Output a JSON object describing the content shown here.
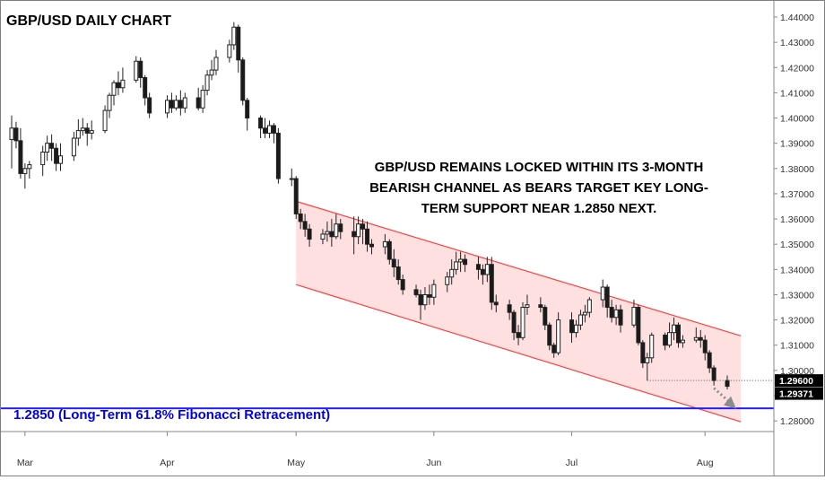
{
  "title": "GBP/USD DAILY CHART",
  "annotation_lines": [
    "GBP/USD REMAINS LOCKED WITHIN ITS 3-MONTH",
    "BEARISH CHANNEL AS BEARS TARGET KEY LONG-",
    "TERM SUPPORT NEAR 1.2850 NEXT."
  ],
  "fib_label": "1.2850 (Long-Term 61.8% Fibonacci Retracement)",
  "colors": {
    "up": "#ffffff",
    "down": "#1a1a1a",
    "wick": "#222222",
    "channel_line": "#ff4040",
    "channel_fill": "#ffd6d6",
    "fib_line": "#2020ff",
    "fib_text": "#0000ee",
    "arrow": "#8c8c8c"
  },
  "chart_data": {
    "type": "candlestick",
    "x": {
      "start": "2018-02-26",
      "end": "2018-08-06",
      "ticks": [
        {
          "label": "Mar",
          "date": "2018-03-01"
        },
        {
          "label": "Apr",
          "date": "2018-04-02"
        },
        {
          "label": "May",
          "date": "2018-05-01"
        },
        {
          "label": "Jun",
          "date": "2018-06-01"
        },
        {
          "label": "Jul",
          "date": "2018-07-02"
        },
        {
          "label": "Aug",
          "date": "2018-08-01"
        }
      ]
    },
    "ylim": [
      1.2765,
      1.4455
    ],
    "y_ticks": [
      "1.28000",
      "1.29000",
      "1.30000",
      "1.31000",
      "1.32000",
      "1.33000",
      "1.34000",
      "1.35000",
      "1.36000",
      "1.37000",
      "1.38000",
      "1.39000",
      "1.40000",
      "1.41000",
      "1.42000",
      "1.43000",
      "1.44000"
    ],
    "price_labels": [
      {
        "label": "1.29600",
        "value": 1.296
      },
      {
        "label": "1.29371",
        "value": 1.2937
      }
    ],
    "fib_level": 1.285,
    "channel": {
      "upper": [
        {
          "date": "2018-05-01",
          "value": 1.367
        },
        {
          "date": "2018-08-01",
          "value": 1.318
        }
      ],
      "lower": [
        {
          "date": "2018-05-01",
          "value": 1.334
        },
        {
          "date": "2018-08-01",
          "value": 1.284
        }
      ]
    },
    "arrow": {
      "from": {
        "date": "2018-08-03",
        "value": 1.293
      },
      "to": {
        "date": "2018-08-06",
        "value": 1.2855
      }
    },
    "candles": [
      {
        "date": "2018-02-26",
        "open": 1.3915,
        "high": 1.401,
        "low": 1.38,
        "close": 1.396
      },
      {
        "date": "2018-02-27",
        "open": 1.396,
        "high": 1.3985,
        "low": 1.388,
        "close": 1.391
      },
      {
        "date": "2018-02-28",
        "open": 1.391,
        "high": 1.396,
        "low": 1.376,
        "close": 1.378
      },
      {
        "date": "2018-03-01",
        "open": 1.378,
        "high": 1.382,
        "low": 1.372,
        "close": 1.38
      },
      {
        "date": "2018-03-02",
        "open": 1.38,
        "high": 1.383,
        "low": 1.376,
        "close": 1.3815
      },
      {
        "date": "2018-03-05",
        "open": 1.3815,
        "high": 1.389,
        "low": 1.377,
        "close": 1.3865
      },
      {
        "date": "2018-03-06",
        "open": 1.3865,
        "high": 1.393,
        "low": 1.383,
        "close": 1.39
      },
      {
        "date": "2018-03-07",
        "open": 1.39,
        "high": 1.3935,
        "low": 1.383,
        "close": 1.388
      },
      {
        "date": "2018-03-08",
        "open": 1.388,
        "high": 1.39,
        "low": 1.379,
        "close": 1.382
      },
      {
        "date": "2018-03-09",
        "open": 1.382,
        "high": 1.39,
        "low": 1.379,
        "close": 1.385
      },
      {
        "date": "2018-03-12",
        "open": 1.385,
        "high": 1.3945,
        "low": 1.383,
        "close": 1.392
      },
      {
        "date": "2018-03-13",
        "open": 1.392,
        "high": 1.3995,
        "low": 1.389,
        "close": 1.395
      },
      {
        "date": "2018-03-14",
        "open": 1.395,
        "high": 1.4,
        "low": 1.393,
        "close": 1.396
      },
      {
        "date": "2018-03-15",
        "open": 1.396,
        "high": 1.398,
        "low": 1.389,
        "close": 1.394
      },
      {
        "date": "2018-03-16",
        "open": 1.394,
        "high": 1.399,
        "low": 1.3915,
        "close": 1.395
      },
      {
        "date": "2018-03-19",
        "open": 1.395,
        "high": 1.405,
        "low": 1.394,
        "close": 1.403
      },
      {
        "date": "2018-03-20",
        "open": 1.403,
        "high": 1.41,
        "low": 1.4,
        "close": 1.409
      },
      {
        "date": "2018-03-21",
        "open": 1.409,
        "high": 1.415,
        "low": 1.405,
        "close": 1.414
      },
      {
        "date": "2018-03-22",
        "open": 1.414,
        "high": 1.4185,
        "low": 1.409,
        "close": 1.412
      },
      {
        "date": "2018-03-23",
        "open": 1.412,
        "high": 1.42,
        "low": 1.41,
        "close": 1.415
      },
      {
        "date": "2018-03-26",
        "open": 1.415,
        "high": 1.4245,
        "low": 1.414,
        "close": 1.4225
      },
      {
        "date": "2018-03-27",
        "open": 1.4225,
        "high": 1.424,
        "low": 1.412,
        "close": 1.416
      },
      {
        "date": "2018-03-28",
        "open": 1.416,
        "high": 1.417,
        "low": 1.405,
        "close": 1.408
      },
      {
        "date": "2018-03-29",
        "open": 1.408,
        "high": 1.41,
        "low": 1.4,
        "close": 1.402
      },
      {
        "date": "2018-04-02",
        "open": 1.402,
        "high": 1.409,
        "low": 1.4,
        "close": 1.407
      },
      {
        "date": "2018-04-03",
        "open": 1.407,
        "high": 1.41,
        "low": 1.402,
        "close": 1.404
      },
      {
        "date": "2018-04-04",
        "open": 1.404,
        "high": 1.409,
        "low": 1.403,
        "close": 1.407
      },
      {
        "date": "2018-04-05",
        "open": 1.407,
        "high": 1.411,
        "low": 1.401,
        "close": 1.404
      },
      {
        "date": "2018-04-06",
        "open": 1.404,
        "high": 1.41,
        "low": 1.402,
        "close": 1.408
      },
      {
        "date": "2018-04-09",
        "open": 1.408,
        "high": 1.412,
        "low": 1.403,
        "close": 1.404
      },
      {
        "date": "2018-04-10",
        "open": 1.404,
        "high": 1.413,
        "low": 1.402,
        "close": 1.411
      },
      {
        "date": "2018-04-11",
        "open": 1.411,
        "high": 1.419,
        "low": 1.409,
        "close": 1.417
      },
      {
        "date": "2018-04-12",
        "open": 1.417,
        "high": 1.423,
        "low": 1.415,
        "close": 1.419
      },
      {
        "date": "2018-04-13",
        "open": 1.419,
        "high": 1.427,
        "low": 1.417,
        "close": 1.424
      },
      {
        "date": "2018-04-16",
        "open": 1.424,
        "high": 1.431,
        "low": 1.422,
        "close": 1.429
      },
      {
        "date": "2018-04-17",
        "open": 1.429,
        "high": 1.438,
        "low": 1.427,
        "close": 1.436
      },
      {
        "date": "2018-04-18",
        "open": 1.436,
        "high": 1.437,
        "low": 1.418,
        "close": 1.423
      },
      {
        "date": "2018-04-19",
        "open": 1.423,
        "high": 1.424,
        "low": 1.405,
        "close": 1.407
      },
      {
        "date": "2018-04-20",
        "open": 1.407,
        "high": 1.408,
        "low": 1.395,
        "close": 1.4
      },
      {
        "date": "2018-04-23",
        "open": 1.4,
        "high": 1.401,
        "low": 1.392,
        "close": 1.396
      },
      {
        "date": "2018-04-24",
        "open": 1.396,
        "high": 1.4,
        "low": 1.392,
        "close": 1.394
      },
      {
        "date": "2018-04-25",
        "open": 1.394,
        "high": 1.399,
        "low": 1.392,
        "close": 1.397
      },
      {
        "date": "2018-04-26",
        "open": 1.397,
        "high": 1.398,
        "low": 1.39,
        "close": 1.394
      },
      {
        "date": "2018-04-27",
        "open": 1.394,
        "high": 1.396,
        "low": 1.374,
        "close": 1.376
      },
      {
        "date": "2018-04-30",
        "open": 1.376,
        "high": 1.38,
        "low": 1.373,
        "close": 1.376
      },
      {
        "date": "2018-05-01",
        "open": 1.376,
        "high": 1.377,
        "low": 1.36,
        "close": 1.362
      },
      {
        "date": "2018-05-02",
        "open": 1.362,
        "high": 1.364,
        "low": 1.356,
        "close": 1.359
      },
      {
        "date": "2018-05-03",
        "open": 1.359,
        "high": 1.362,
        "low": 1.353,
        "close": 1.356
      },
      {
        "date": "2018-05-04",
        "open": 1.356,
        "high": 1.358,
        "low": 1.349,
        "close": 1.352
      },
      {
        "date": "2018-05-07",
        "open": 1.352,
        "high": 1.356,
        "low": 1.35,
        "close": 1.354
      },
      {
        "date": "2018-05-08",
        "open": 1.354,
        "high": 1.359,
        "low": 1.351,
        "close": 1.355
      },
      {
        "date": "2018-05-09",
        "open": 1.355,
        "high": 1.36,
        "low": 1.349,
        "close": 1.353
      },
      {
        "date": "2018-05-10",
        "open": 1.353,
        "high": 1.362,
        "low": 1.352,
        "close": 1.358
      },
      {
        "date": "2018-05-11",
        "open": 1.358,
        "high": 1.36,
        "low": 1.352,
        "close": 1.355
      },
      {
        "date": "2018-05-14",
        "open": 1.355,
        "high": 1.361,
        "low": 1.346,
        "close": 1.353
      },
      {
        "date": "2018-05-15",
        "open": 1.353,
        "high": 1.361,
        "low": 1.35,
        "close": 1.358
      },
      {
        "date": "2018-05-16",
        "open": 1.358,
        "high": 1.36,
        "low": 1.35,
        "close": 1.356
      },
      {
        "date": "2018-05-17",
        "open": 1.356,
        "high": 1.359,
        "low": 1.347,
        "close": 1.35
      },
      {
        "date": "2018-05-18",
        "open": 1.35,
        "high": 1.352,
        "low": 1.346,
        "close": 1.349
      },
      {
        "date": "2018-05-21",
        "open": 1.349,
        "high": 1.354,
        "low": 1.346,
        "close": 1.351
      },
      {
        "date": "2018-05-22",
        "open": 1.351,
        "high": 1.352,
        "low": 1.342,
        "close": 1.344
      },
      {
        "date": "2018-05-23",
        "open": 1.344,
        "high": 1.348,
        "low": 1.337,
        "close": 1.341
      },
      {
        "date": "2018-05-24",
        "open": 1.341,
        "high": 1.344,
        "low": 1.334,
        "close": 1.336
      },
      {
        "date": "2018-05-25",
        "open": 1.336,
        "high": 1.338,
        "low": 1.33,
        "close": 1.332
      },
      {
        "date": "2018-05-28",
        "open": 1.332,
        "high": 1.334,
        "low": 1.329,
        "close": 1.33
      },
      {
        "date": "2018-05-29",
        "open": 1.33,
        "high": 1.332,
        "low": 1.32,
        "close": 1.326
      },
      {
        "date": "2018-05-30",
        "open": 1.326,
        "high": 1.333,
        "low": 1.324,
        "close": 1.33
      },
      {
        "date": "2018-05-31",
        "open": 1.33,
        "high": 1.334,
        "low": 1.326,
        "close": 1.329
      },
      {
        "date": "2018-06-01",
        "open": 1.329,
        "high": 1.336,
        "low": 1.326,
        "close": 1.334
      },
      {
        "date": "2018-06-04",
        "open": 1.334,
        "high": 1.339,
        "low": 1.331,
        "close": 1.337
      },
      {
        "date": "2018-06-05",
        "open": 1.337,
        "high": 1.344,
        "low": 1.334,
        "close": 1.34
      },
      {
        "date": "2018-06-06",
        "open": 1.34,
        "high": 1.347,
        "low": 1.338,
        "close": 1.343
      },
      {
        "date": "2018-06-07",
        "open": 1.343,
        "high": 1.347,
        "low": 1.339,
        "close": 1.344
      },
      {
        "date": "2018-06-08",
        "open": 1.344,
        "high": 1.346,
        "low": 1.339,
        "close": 1.342
      },
      {
        "date": "2018-06-11",
        "open": 1.342,
        "high": 1.345,
        "low": 1.336,
        "close": 1.34
      },
      {
        "date": "2018-06-12",
        "open": 1.34,
        "high": 1.342,
        "low": 1.334,
        "close": 1.338
      },
      {
        "date": "2018-06-13",
        "open": 1.338,
        "high": 1.345,
        "low": 1.335,
        "close": 1.342
      },
      {
        "date": "2018-06-14",
        "open": 1.342,
        "high": 1.345,
        "low": 1.324,
        "close": 1.327
      },
      {
        "date": "2018-06-15",
        "open": 1.327,
        "high": 1.33,
        "low": 1.323,
        "close": 1.326
      },
      {
        "date": "2018-06-18",
        "open": 1.326,
        "high": 1.328,
        "low": 1.32,
        "close": 1.323
      },
      {
        "date": "2018-06-19",
        "open": 1.323,
        "high": 1.324,
        "low": 1.312,
        "close": 1.315
      },
      {
        "date": "2018-06-20",
        "open": 1.315,
        "high": 1.318,
        "low": 1.31,
        "close": 1.313
      },
      {
        "date": "2018-06-21",
        "open": 1.313,
        "high": 1.327,
        "low": 1.312,
        "close": 1.325
      },
      {
        "date": "2018-06-22",
        "open": 1.325,
        "high": 1.33,
        "low": 1.322,
        "close": 1.326
      },
      {
        "date": "2018-06-25",
        "open": 1.326,
        "high": 1.329,
        "low": 1.323,
        "close": 1.325
      },
      {
        "date": "2018-06-26",
        "open": 1.325,
        "high": 1.326,
        "low": 1.316,
        "close": 1.318
      },
      {
        "date": "2018-06-27",
        "open": 1.318,
        "high": 1.319,
        "low": 1.308,
        "close": 1.31
      },
      {
        "date": "2018-06-28",
        "open": 1.31,
        "high": 1.311,
        "low": 1.305,
        "close": 1.307
      },
      {
        "date": "2018-06-29",
        "open": 1.307,
        "high": 1.323,
        "low": 1.306,
        "close": 1.32
      },
      {
        "date": "2018-07-02",
        "open": 1.32,
        "high": 1.323,
        "low": 1.311,
        "close": 1.315
      },
      {
        "date": "2018-07-03",
        "open": 1.315,
        "high": 1.32,
        "low": 1.313,
        "close": 1.318
      },
      {
        "date": "2018-07-04",
        "open": 1.318,
        "high": 1.324,
        "low": 1.316,
        "close": 1.322
      },
      {
        "date": "2018-07-05",
        "open": 1.322,
        "high": 1.326,
        "low": 1.319,
        "close": 1.323
      },
      {
        "date": "2018-07-06",
        "open": 1.323,
        "high": 1.329,
        "low": 1.321,
        "close": 1.328
      },
      {
        "date": "2018-07-09",
        "open": 1.328,
        "high": 1.336,
        "low": 1.325,
        "close": 1.333
      },
      {
        "date": "2018-07-10",
        "open": 1.333,
        "high": 1.334,
        "low": 1.321,
        "close": 1.325
      },
      {
        "date": "2018-07-11",
        "open": 1.325,
        "high": 1.328,
        "low": 1.319,
        "close": 1.321
      },
      {
        "date": "2018-07-12",
        "open": 1.321,
        "high": 1.326,
        "low": 1.318,
        "close": 1.324
      },
      {
        "date": "2018-07-13",
        "open": 1.324,
        "high": 1.326,
        "low": 1.315,
        "close": 1.318
      },
      {
        "date": "2018-07-16",
        "open": 1.318,
        "high": 1.328,
        "low": 1.317,
        "close": 1.325
      },
      {
        "date": "2018-07-17",
        "open": 1.325,
        "high": 1.326,
        "low": 1.31,
        "close": 1.311
      },
      {
        "date": "2018-07-18",
        "open": 1.311,
        "high": 1.312,
        "low": 1.301,
        "close": 1.303
      },
      {
        "date": "2018-07-19",
        "open": 1.303,
        "high": 1.307,
        "low": 1.296,
        "close": 1.305
      },
      {
        "date": "2018-07-20",
        "open": 1.305,
        "high": 1.315,
        "low": 1.303,
        "close": 1.314
      },
      {
        "date": "2018-07-23",
        "open": 1.314,
        "high": 1.315,
        "low": 1.308,
        "close": 1.31
      },
      {
        "date": "2018-07-24",
        "open": 1.31,
        "high": 1.319,
        "low": 1.309,
        "close": 1.315
      },
      {
        "date": "2018-07-25",
        "open": 1.315,
        "high": 1.321,
        "low": 1.312,
        "close": 1.318
      },
      {
        "date": "2018-07-26",
        "open": 1.318,
        "high": 1.319,
        "low": 1.309,
        "close": 1.311
      },
      {
        "date": "2018-07-27",
        "open": 1.311,
        "high": 1.314,
        "low": 1.309,
        "close": 1.312
      },
      {
        "date": "2018-07-30",
        "open": 1.312,
        "high": 1.317,
        "low": 1.311,
        "close": 1.313
      },
      {
        "date": "2018-07-31",
        "open": 1.313,
        "high": 1.316,
        "low": 1.309,
        "close": 1.312
      },
      {
        "date": "2018-08-01",
        "open": 1.312,
        "high": 1.314,
        "low": 1.304,
        "close": 1.307
      },
      {
        "date": "2018-08-02",
        "open": 1.307,
        "high": 1.308,
        "low": 1.299,
        "close": 1.301
      },
      {
        "date": "2018-08-03",
        "open": 1.301,
        "high": 1.302,
        "low": 1.294,
        "close": 1.296
      },
      {
        "date": "2018-08-06",
        "open": 1.296,
        "high": 1.298,
        "low": 1.2925,
        "close": 1.2937
      }
    ]
  }
}
